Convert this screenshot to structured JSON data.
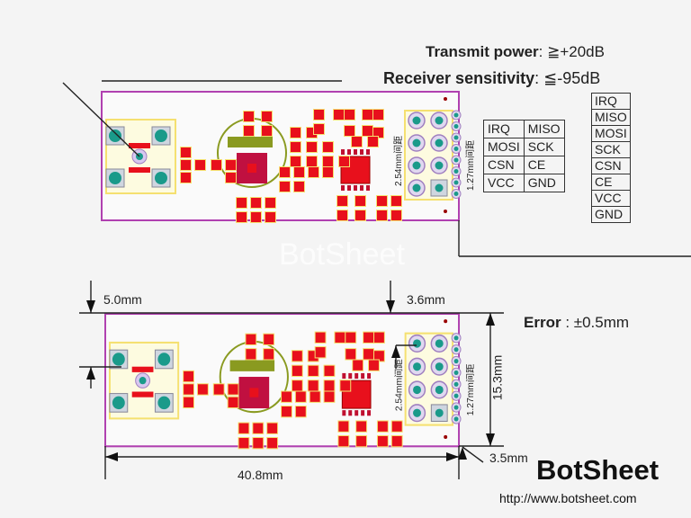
{
  "specs": {
    "transmit_label": "Transmit power",
    "transmit_value": ": ≧+20dB",
    "receiver_label": "Receiver sensitivity",
    "receiver_value": ": ≦-95dB"
  },
  "pin_table_2col": [
    [
      "IRQ",
      "MISO"
    ],
    [
      "MOSI",
      "SCK"
    ],
    [
      "CSN",
      "CE"
    ],
    [
      "VCC",
      "GND"
    ]
  ],
  "pin_table_1col": [
    "IRQ",
    "MISO",
    "MOSI",
    "SCK",
    "CSN",
    "CE",
    "VCC",
    "GND"
  ],
  "pitch_labels": {
    "large": "2.54mm间距",
    "small": "1.27mm间距"
  },
  "dimensions": {
    "top_offset": "5.0mm",
    "header_offset": "3.6mm",
    "error": "Error",
    "error_value": ": ±0.5mm",
    "height": "15.3mm",
    "edge": "3.5mm",
    "width": "40.8mm"
  },
  "watermark": "BotSheet",
  "brand": {
    "name": "BotSheet",
    "url": "http://www.botsheet.com"
  },
  "colors": {
    "board_outline": "#b040b0",
    "pad": "#e8101c",
    "pad_outline": "#f5e070",
    "via": "#1a9a8a",
    "silk": "#8a9a20"
  }
}
